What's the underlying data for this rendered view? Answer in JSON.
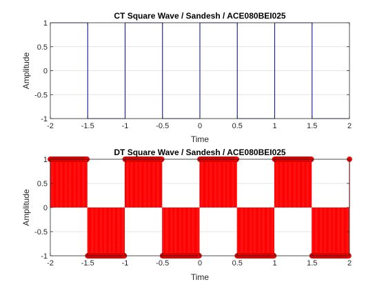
{
  "chart_data": [
    {
      "type": "line",
      "title": "CT Square Wave / Sandesh / ACE080BEI025",
      "xlabel": "Time",
      "ylabel": "Amplitude",
      "xlim": [
        -2,
        2
      ],
      "ylim": [
        -1,
        1
      ],
      "xticks": [
        -2,
        -1.5,
        -1,
        -0.5,
        0,
        0.5,
        1,
        1.5,
        2
      ],
      "xtick_labels": [
        "-2",
        "-1.5",
        "-1",
        "-0.5",
        "0",
        "0.5",
        "1",
        "1.5",
        "2"
      ],
      "yticks": [
        -1,
        -0.5,
        0,
        0.5,
        1
      ],
      "ytick_labels": [
        "-1",
        "-0.5",
        "0",
        "0.5",
        "1"
      ],
      "grid": "horizontal",
      "series": [
        {
          "color": "#1414a8",
          "x": [
            -2,
            -1.5,
            -1.5,
            -1,
            -1,
            -0.5,
            -0.5,
            0,
            0,
            0.5,
            0.5,
            1,
            1,
            1.5,
            1.5,
            2
          ],
          "y": [
            1,
            1,
            -1,
            -1,
            1,
            1,
            -1,
            -1,
            1,
            1,
            -1,
            -1,
            1,
            1,
            -1,
            -1
          ]
        }
      ]
    },
    {
      "type": "stem",
      "title": "DT Square Wave / Sandesh / ACE080BEI025",
      "xlabel": "Time",
      "ylabel": "Amplitude",
      "xlim": [
        -2,
        2
      ],
      "ylim": [
        -1,
        1
      ],
      "xticks": [
        -2,
        -1.5,
        -1,
        -0.5,
        0,
        0.5,
        1,
        1.5,
        2
      ],
      "xtick_labels": [
        "-2",
        "-1.5",
        "-1",
        "-0.5",
        "0",
        "0.5",
        "1",
        "1.5",
        "2"
      ],
      "yticks": [
        -1,
        -0.5,
        0,
        0.5,
        1
      ],
      "ytick_labels": [
        "-1",
        "-0.5",
        "0",
        "0.5",
        "1"
      ],
      "grid": "horizontal",
      "series": [
        {
          "color": "#ff0000",
          "x_start": -2,
          "x_end": 2,
          "x_step": 0.01,
          "period": 1,
          "duty_high": 0.5,
          "high": 1,
          "low": -1,
          "last_point_value": 1
        }
      ]
    }
  ]
}
